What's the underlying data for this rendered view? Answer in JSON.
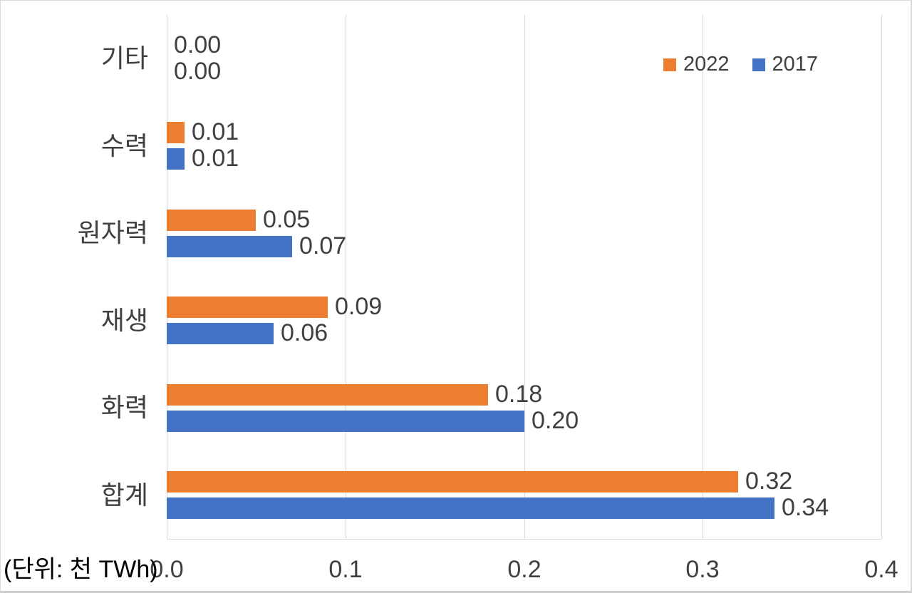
{
  "chart_data": {
    "type": "bar",
    "orientation": "horizontal",
    "categories": [
      "기타",
      "수력",
      "원자력",
      "재생",
      "화력",
      "합계"
    ],
    "series": [
      {
        "name": "2022",
        "color": "#ED7D31",
        "values": [
          0.0,
          0.01,
          0.05,
          0.09,
          0.18,
          0.32
        ],
        "labels": [
          "0.00",
          "0.01",
          "0.05",
          "0.09",
          "0.18",
          "0.32"
        ]
      },
      {
        "name": "2017",
        "color": "#4472C4",
        "values": [
          0.0,
          0.01,
          0.07,
          0.06,
          0.2,
          0.34
        ],
        "labels": [
          "0.00",
          "0.01",
          "0.07",
          "0.06",
          "0.20",
          "0.34"
        ]
      }
    ],
    "x_tick_labels": [
      "0.0",
      "0.1",
      "0.2",
      "0.3",
      "0.4"
    ],
    "x_tick_values": [
      0.0,
      0.1,
      0.2,
      0.3,
      0.4
    ],
    "xlim": [
      0.0,
      0.4
    ],
    "unit_note": "(단위: 천 TWh)",
    "legend_position": "top-right",
    "grid": "vertical"
  },
  "styles": {
    "background": "#FFFFFF",
    "grid_color": "#D9D9D9",
    "axis_color": "#D9D9D9",
    "text_color": "#404040"
  }
}
